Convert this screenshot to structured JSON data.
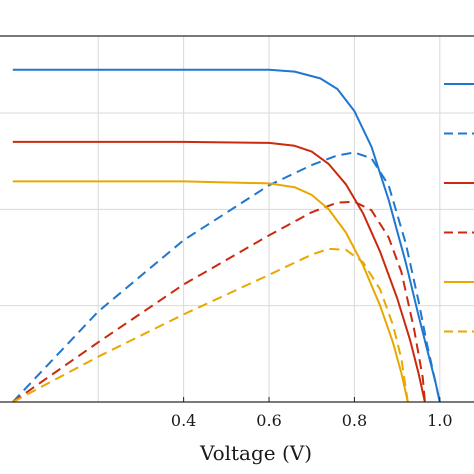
{
  "chart_data": {
    "type": "line",
    "xlabel": "Voltage (V)",
    "ylabel": "",
    "xlim": [
      -0.03,
      1.08
    ],
    "ylim": [
      0,
      38
    ],
    "x_ticks": [
      0.4,
      0.6,
      0.8,
      1.0
    ],
    "x_tick_labels": [
      "0.4",
      "0.6",
      "0.8",
      "1.0"
    ],
    "y_gridlines": [
      10,
      20,
      30
    ],
    "grid": true,
    "legend": "right, line samples only (labels cropped)",
    "series": [
      {
        "color": "#1f77d0",
        "dash": false,
        "points": [
          [
            0.0,
            34.5
          ],
          [
            0.2,
            34.5
          ],
          [
            0.4,
            34.5
          ],
          [
            0.6,
            34.5
          ],
          [
            0.66,
            34.3
          ],
          [
            0.72,
            33.6
          ],
          [
            0.76,
            32.5
          ],
          [
            0.8,
            30.2
          ],
          [
            0.84,
            26.5
          ],
          [
            0.88,
            21.0
          ],
          [
            0.92,
            14.5
          ],
          [
            0.95,
            9.0
          ],
          [
            0.97,
            5.5
          ],
          [
            0.99,
            2.0
          ],
          [
            1.0,
            0.0
          ]
        ]
      },
      {
        "color": "#1f77d0",
        "dash": true,
        "points": [
          [
            0.0,
            0.0
          ],
          [
            0.2,
            9.4
          ],
          [
            0.4,
            16.8
          ],
          [
            0.6,
            22.5
          ],
          [
            0.7,
            24.6
          ],
          [
            0.76,
            25.6
          ],
          [
            0.8,
            25.9
          ],
          [
            0.84,
            25.3
          ],
          [
            0.88,
            22.5
          ],
          [
            0.92,
            16.5
          ],
          [
            0.95,
            10.5
          ],
          [
            0.97,
            6.0
          ],
          [
            0.99,
            2.0
          ],
          [
            1.0,
            0.0
          ]
        ]
      },
      {
        "color": "#cc2a0e",
        "dash": false,
        "points": [
          [
            0.0,
            27.0
          ],
          [
            0.2,
            27.0
          ],
          [
            0.4,
            27.0
          ],
          [
            0.6,
            26.9
          ],
          [
            0.66,
            26.6
          ],
          [
            0.7,
            26.0
          ],
          [
            0.74,
            24.7
          ],
          [
            0.78,
            22.6
          ],
          [
            0.82,
            19.6
          ],
          [
            0.86,
            15.6
          ],
          [
            0.9,
            10.8
          ],
          [
            0.93,
            6.5
          ],
          [
            0.95,
            3.0
          ],
          [
            0.965,
            0.0
          ]
        ]
      },
      {
        "color": "#cc2a0e",
        "dash": true,
        "points": [
          [
            0.0,
            0.0
          ],
          [
            0.2,
            6.2
          ],
          [
            0.4,
            12.2
          ],
          [
            0.6,
            17.3
          ],
          [
            0.7,
            19.7
          ],
          [
            0.76,
            20.7
          ],
          [
            0.8,
            20.8
          ],
          [
            0.84,
            19.9
          ],
          [
            0.88,
            17.1
          ],
          [
            0.91,
            13.5
          ],
          [
            0.94,
            7.5
          ],
          [
            0.96,
            2.5
          ],
          [
            0.965,
            0.0
          ]
        ]
      },
      {
        "color": "#e8a800",
        "dash": false,
        "points": [
          [
            0.0,
            22.9
          ],
          [
            0.2,
            22.9
          ],
          [
            0.4,
            22.9
          ],
          [
            0.6,
            22.7
          ],
          [
            0.66,
            22.3
          ],
          [
            0.7,
            21.5
          ],
          [
            0.74,
            20.0
          ],
          [
            0.78,
            17.6
          ],
          [
            0.82,
            14.2
          ],
          [
            0.86,
            10.0
          ],
          [
            0.89,
            6.2
          ],
          [
            0.91,
            3.0
          ],
          [
            0.925,
            0.0
          ]
        ]
      },
      {
        "color": "#e8a800",
        "dash": true,
        "points": [
          [
            0.0,
            0.0
          ],
          [
            0.2,
            4.7
          ],
          [
            0.4,
            9.1
          ],
          [
            0.6,
            13.2
          ],
          [
            0.7,
            15.3
          ],
          [
            0.74,
            15.9
          ],
          [
            0.78,
            15.8
          ],
          [
            0.82,
            14.5
          ],
          [
            0.86,
            11.7
          ],
          [
            0.89,
            8.0
          ],
          [
            0.91,
            4.5
          ],
          [
            0.925,
            0.0
          ]
        ]
      }
    ]
  }
}
